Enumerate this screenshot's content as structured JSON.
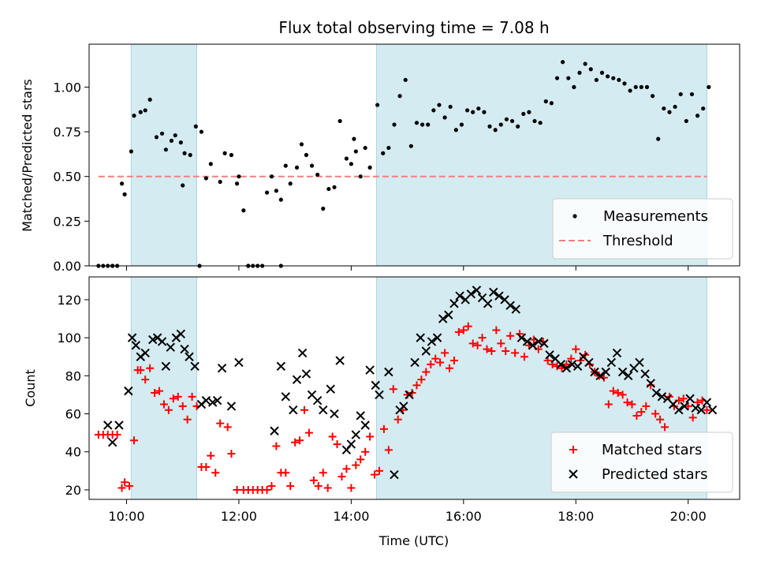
{
  "chart_data": [
    {
      "type": "scatter",
      "title": "Flux total observing time = 7.08 h",
      "xlabel": "",
      "ylabel": "Matched/Predicted stars",
      "xlim": [
        "09:20",
        "20:55"
      ],
      "ylim": [
        0,
        1.24
      ],
      "yticks": [
        "0.00",
        "0.25",
        "0.50",
        "0.75",
        "1.00"
      ],
      "grid": false,
      "legend": "lower-right",
      "shaded_intervals": [
        [
          "10:05",
          "11:15"
        ],
        [
          "14:27",
          "20:20"
        ]
      ],
      "threshold": {
        "name": "Threshold",
        "y": 0.5,
        "x": [
          "09:30",
          "20:20"
        ],
        "color": "#f08080"
      },
      "series": [
        {
          "name": "Measurements",
          "marker": "dot",
          "color": "#000000",
          "x": [
            "09:30",
            "09:35",
            "09:40",
            "09:45",
            "09:50",
            "09:55",
            "09:58",
            "10:05",
            "10:08",
            "10:15",
            "10:20",
            "10:25",
            "10:32",
            "10:38",
            "10:42",
            "10:48",
            "10:52",
            "10:58",
            "11:02",
            "11:08",
            "11:14",
            "11:20",
            "11:25",
            "11:30",
            "11:40",
            "11:45",
            "11:52",
            "11:58",
            "12:05",
            "12:10",
            "12:15",
            "12:20",
            "12:25",
            "12:30",
            "12:35",
            "12:40",
            "12:45",
            "12:50",
            "12:55",
            "13:02",
            "13:07",
            "13:12",
            "13:18",
            "13:24",
            "13:30",
            "13:36",
            "13:42",
            "13:48",
            "13:55",
            "14:00",
            "14:05",
            "14:10",
            "14:15",
            "14:20",
            "14:28",
            "14:34",
            "14:40",
            "14:46",
            "14:52",
            "14:58",
            "15:04",
            "15:10",
            "15:16",
            "15:22",
            "15:28",
            "15:34",
            "15:40",
            "15:46",
            "15:52",
            "15:58",
            "16:04",
            "16:10",
            "16:16",
            "16:22",
            "16:28",
            "16:34",
            "16:40",
            "16:46",
            "16:52",
            "16:58",
            "17:04",
            "17:10",
            "17:16",
            "17:22",
            "17:28",
            "17:34",
            "17:40",
            "17:46",
            "17:52",
            "17:58",
            "18:04",
            "18:10",
            "18:16",
            "18:22",
            "18:28",
            "18:34",
            "18:40",
            "18:46",
            "18:52",
            "18:58",
            "19:04",
            "19:10",
            "19:16",
            "19:22",
            "19:28",
            "19:34",
            "19:40",
            "19:46",
            "19:52",
            "19:58",
            "20:04",
            "20:10",
            "20:16",
            "20:22",
            "11:00",
            "11:18",
            "12:10",
            "12:45",
            "14:03",
            "09:45",
            "12:00"
          ],
          "y": [
            0.0,
            0.0,
            0.0,
            0.0,
            0.0,
            0.46,
            0.4,
            0.64,
            0.84,
            0.86,
            0.87,
            0.93,
            0.72,
            0.74,
            0.65,
            0.7,
            0.73,
            0.69,
            0.63,
            0.62,
            0.78,
            0.75,
            0.49,
            0.57,
            0.47,
            0.63,
            0.62,
            0.46,
            0.31,
            0.0,
            0.0,
            0.0,
            0.0,
            0.41,
            0.5,
            0.42,
            0.37,
            0.56,
            0.46,
            0.55,
            0.68,
            0.62,
            0.56,
            0.51,
            0.32,
            0.43,
            0.44,
            0.81,
            0.6,
            0.57,
            0.64,
            0.5,
            0.66,
            0.55,
            0.9,
            0.63,
            0.66,
            0.79,
            0.95,
            1.04,
            0.67,
            0.8,
            0.79,
            0.79,
            0.87,
            0.9,
            0.83,
            0.89,
            0.76,
            0.79,
            0.87,
            0.86,
            0.88,
            0.86,
            0.78,
            0.76,
            0.79,
            0.82,
            0.81,
            0.78,
            0.85,
            0.86,
            0.81,
            0.8,
            0.92,
            0.91,
            1.05,
            1.14,
            1.05,
            1.0,
            1.08,
            1.13,
            1.1,
            1.04,
            1.08,
            1.06,
            1.05,
            1.04,
            1.02,
            0.98,
            1.0,
            1.0,
            1.0,
            0.95,
            0.71,
            0.88,
            0.86,
            0.89,
            0.96,
            0.81,
            0.96,
            0.84,
            0.88,
            1.0,
            0.45,
            0.0,
            0.0,
            0.0,
            0.71,
            0.0,
            0.5
          ]
        }
      ]
    },
    {
      "type": "scatter",
      "title": "",
      "xlabel": "Time (UTC)",
      "ylabel": "Count",
      "xlim": [
        "09:20",
        "20:55"
      ],
      "ylim": [
        15,
        132
      ],
      "xticks": [
        "10:00",
        "12:00",
        "14:00",
        "16:00",
        "18:00",
        "20:00"
      ],
      "yticks": [
        "20",
        "40",
        "60",
        "80",
        "100",
        "120"
      ],
      "grid": false,
      "legend": "lower-right",
      "shaded_intervals": [
        [
          "10:05",
          "11:15"
        ],
        [
          "14:27",
          "20:20"
        ]
      ],
      "series": [
        {
          "name": "Matched stars",
          "marker": "plus",
          "color": "#ff0000",
          "x": [
            "09:30",
            "09:35",
            "09:40",
            "09:45",
            "09:50",
            "09:55",
            "09:58",
            "10:03",
            "10:08",
            "10:12",
            "10:15",
            "10:20",
            "10:25",
            "10:30",
            "10:35",
            "10:40",
            "10:45",
            "10:50",
            "10:55",
            "11:00",
            "11:05",
            "11:10",
            "11:15",
            "11:20",
            "11:25",
            "11:30",
            "11:35",
            "11:40",
            "11:48",
            "11:52",
            "11:58",
            "12:05",
            "12:10",
            "12:15",
            "12:20",
            "12:25",
            "12:30",
            "12:35",
            "12:40",
            "12:45",
            "12:50",
            "12:55",
            "13:00",
            "13:05",
            "13:10",
            "13:15",
            "13:20",
            "13:25",
            "13:30",
            "13:35",
            "13:40",
            "13:45",
            "13:50",
            "13:55",
            "14:00",
            "14:05",
            "14:10",
            "14:15",
            "14:20",
            "14:25",
            "14:30",
            "14:35",
            "14:40",
            "14:45",
            "14:50",
            "14:55",
            "15:00",
            "15:05",
            "15:10",
            "15:15",
            "15:20",
            "15:25",
            "15:30",
            "15:35",
            "15:40",
            "15:45",
            "15:50",
            "15:55",
            "16:00",
            "16:05",
            "16:10",
            "16:15",
            "16:20",
            "16:25",
            "16:30",
            "16:35",
            "16:40",
            "16:45",
            "16:50",
            "16:55",
            "17:00",
            "17:05",
            "17:10",
            "17:15",
            "17:20",
            "17:25",
            "17:30",
            "17:35",
            "17:40",
            "17:45",
            "17:50",
            "17:55",
            "18:00",
            "18:05",
            "18:10",
            "18:15",
            "18:20",
            "18:25",
            "18:30",
            "18:35",
            "18:40",
            "18:45",
            "18:50",
            "18:55",
            "19:00",
            "19:05",
            "19:10",
            "19:15",
            "19:20",
            "19:25",
            "19:30",
            "19:35",
            "19:40",
            "19:45",
            "19:50",
            "19:55",
            "20:00",
            "20:05",
            "20:10",
            "20:15",
            "20:20"
          ],
          "y": [
            49,
            49,
            49,
            49,
            49,
            21,
            24,
            22,
            46,
            83,
            83,
            78,
            84,
            71,
            72,
            65,
            62,
            68,
            69,
            64,
            57,
            69,
            64,
            32,
            32,
            38,
            29,
            55,
            53,
            39,
            20,
            20,
            20,
            20,
            20,
            20,
            20,
            22,
            43,
            29,
            29,
            22,
            45,
            46,
            62,
            50,
            25,
            22,
            29,
            21,
            48,
            44,
            27,
            31,
            21,
            33,
            36,
            40,
            48,
            28,
            30,
            52,
            41,
            73,
            57,
            62,
            70,
            71,
            75,
            78,
            82,
            86,
            89,
            87,
            92,
            84,
            88,
            103,
            104,
            106,
            97,
            96,
            100,
            94,
            93,
            104,
            97,
            93,
            101,
            92,
            102,
            90,
            96,
            99,
            94,
            98,
            88,
            86,
            85,
            84,
            86,
            89,
            94,
            88,
            91,
            86,
            82,
            80,
            79,
            65,
            72,
            71,
            70,
            66,
            65,
            59,
            61,
            64,
            75,
            60,
            57,
            53,
            69,
            64,
            67,
            68,
            64,
            58,
            66,
            67,
            62
          ]
        },
        {
          "name": "Predicted stars",
          "marker": "x",
          "color": "#000000",
          "x": [
            "09:40",
            "09:45",
            "09:52",
            "10:02",
            "10:06",
            "10:10",
            "10:15",
            "10:20",
            "10:28",
            "10:33",
            "10:38",
            "10:42",
            "10:47",
            "10:53",
            "10:58",
            "11:02",
            "11:07",
            "11:13",
            "11:20",
            "11:25",
            "11:32",
            "11:37",
            "11:42",
            "11:52",
            "12:00",
            "12:38",
            "12:45",
            "12:50",
            "12:58",
            "13:02",
            "13:08",
            "13:12",
            "13:18",
            "13:24",
            "13:30",
            "13:38",
            "13:42",
            "13:48",
            "13:55",
            "14:00",
            "14:05",
            "14:10",
            "14:15",
            "14:20",
            "14:26",
            "14:30",
            "14:40",
            "14:46",
            "14:52",
            "14:56",
            "15:02",
            "15:08",
            "15:14",
            "15:20",
            "15:26",
            "15:32",
            "15:38",
            "15:44",
            "15:50",
            "15:56",
            "16:02",
            "16:08",
            "16:14",
            "16:20",
            "16:26",
            "16:32",
            "16:38",
            "16:44",
            "16:50",
            "16:56",
            "17:02",
            "17:08",
            "17:14",
            "17:20",
            "17:26",
            "17:32",
            "17:38",
            "17:44",
            "17:50",
            "17:56",
            "18:02",
            "18:08",
            "18:14",
            "18:20",
            "18:26",
            "18:32",
            "18:38",
            "18:44",
            "18:50",
            "18:56",
            "19:02",
            "19:08",
            "19:14",
            "19:20",
            "19:26",
            "19:32",
            "19:38",
            "19:44",
            "19:50",
            "19:56",
            "20:02",
            "20:08",
            "20:14",
            "20:20",
            "20:26"
          ],
          "y": [
            54,
            45,
            54,
            72,
            100,
            96,
            90,
            92,
            99,
            100,
            98,
            85,
            95,
            100,
            102,
            94,
            90,
            85,
            65,
            67,
            66,
            67,
            84,
            64,
            87,
            51,
            85,
            69,
            62,
            78,
            92,
            81,
            70,
            67,
            62,
            73,
            60,
            88,
            41,
            44,
            49,
            59,
            54,
            83,
            75,
            70,
            82,
            28,
            62,
            64,
            70,
            87,
            100,
            93,
            98,
            100,
            110,
            112,
            118,
            122,
            120,
            123,
            125,
            121,
            118,
            124,
            122,
            120,
            117,
            115,
            100,
            98,
            96,
            98,
            97,
            91,
            89,
            86,
            84,
            86,
            85,
            90,
            87,
            82,
            80,
            82,
            87,
            92,
            82,
            80,
            84,
            87,
            81,
            76,
            71,
            69,
            68,
            65,
            62,
            64,
            68,
            63,
            62,
            66,
            62
          ]
        }
      ]
    }
  ]
}
